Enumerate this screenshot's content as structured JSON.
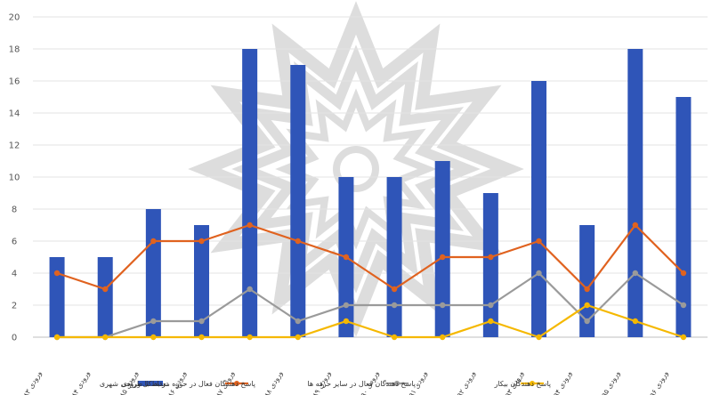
{
  "chart_data": {
    "type": "bar",
    "categories": [
      "ورودی ۸۳",
      "ورودی ۸۴",
      "ورودی ۸۵",
      "ورودی ۸۶",
      "ورودی ۸۷",
      "ورودی ۸۸",
      "ورودی ۸۹",
      "ورودی ۹۰",
      "ورودی ۹۱",
      "ورودی ۹۲",
      "ورودی ۹۳",
      "ورودی ۹۴",
      "ورودی ۹۵",
      "ورودی ۹۶"
    ],
    "ylim": [
      0,
      20
    ],
    "yticks": [
      0,
      2,
      4,
      6,
      8,
      10,
      12,
      14,
      16,
      18,
      20
    ],
    "grid": true,
    "legend_position": "bottom",
    "bar_series": {
      "name": "تعداد کل ورودی",
      "color": "#2f55b8",
      "values": [
        5,
        5,
        8,
        7,
        18,
        17,
        10,
        10,
        11,
        9,
        16,
        7,
        18,
        15
      ]
    },
    "line_series": [
      {
        "name": "پاسخ دهندگان فعال در حوزه مرتبط با طراحی شهری",
        "color": "#e0621f",
        "values": [
          4,
          3,
          6,
          6,
          7,
          6,
          5,
          3,
          5,
          5,
          6,
          3,
          7,
          4
        ]
      },
      {
        "name": "پاسخ دهندگان فعال در سایر حرفه ها",
        "color": "#9a9a9a",
        "values": [
          0,
          0,
          1,
          1,
          3,
          1,
          2,
          2,
          2,
          2,
          4,
          1,
          4,
          2
        ]
      },
      {
        "name": "پاسخ دهندگان بیکار",
        "color": "#f5b800",
        "values": [
          0,
          0,
          0,
          0,
          0,
          0,
          1,
          0,
          0,
          1,
          0,
          2,
          1,
          0
        ]
      }
    ]
  }
}
